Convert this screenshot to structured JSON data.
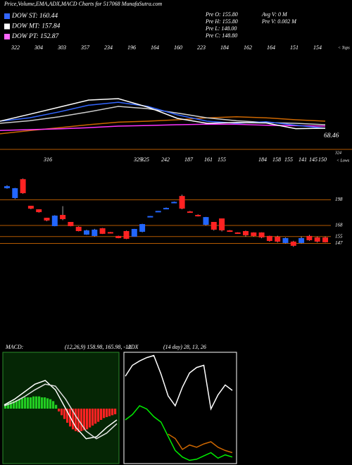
{
  "header": {
    "title": "Price,Volume,EMA,ADX,MACD Charts for 517068 MunafaSutra.com",
    "legend": [
      {
        "label": "DOW ST: 160.44",
        "color": "#3366ff"
      },
      {
        "label": "DOW MT: 157.84",
        "color": "#ffffff"
      },
      {
        "label": "DOW PT: 152.87",
        "color": "#ff66ff"
      }
    ],
    "info": [
      "Pre  O: 155.80",
      "Pre  H: 155.80",
      "Pre  L: 148.00",
      "Pre  C: 148.80",
      "Avg V: 0  M",
      "Pre  V: 0.002  M"
    ]
  },
  "chart_data": [
    {
      "type": "line",
      "ylim": [
        0,
        400
      ],
      "top_labels": [
        "322",
        "304",
        "303",
        "357",
        "234",
        "196",
        "164",
        "160",
        "223",
        "184",
        "162",
        "164",
        "151",
        "154"
      ],
      "tops_marker": "< Tops",
      "last_value": 68.46,
      "bottom_value": 324,
      "series": [
        {
          "color": "#cc6600",
          "values": [
            79,
            95,
            110,
            125,
            138,
            143,
            150,
            160,
            165,
            160,
            150,
            143
          ]
        },
        {
          "color": "#ff33ff",
          "values": [
            96,
            100,
            104,
            110,
            118,
            121,
            125,
            128,
            127,
            122,
            120,
            118
          ]
        },
        {
          "color": "#cccccc",
          "values": [
            132,
            145,
            165,
            190,
            218,
            206,
            184,
            160,
            145,
            136,
            132,
            125
          ]
        },
        {
          "color": "#3366ff",
          "values": [
            143,
            160,
            190,
            224,
            239,
            218,
            175,
            143,
            132,
            140,
            122,
            107
          ]
        },
        {
          "color": "#ffffff",
          "values": [
            143,
            178,
            214,
            250,
            257,
            214,
            157,
            132,
            136,
            134,
            105,
            107
          ]
        }
      ]
    },
    {
      "type": "candlestick",
      "ylim": [
        135,
        234
      ],
      "up_color": "#2266ff",
      "down_color": "#ff2222",
      "level_color": "#b35900",
      "low_labels": [
        "316",
        "329",
        "325",
        "242",
        "187",
        "161",
        "155",
        "184",
        "158",
        "155",
        "141",
        "145",
        "150"
      ],
      "lows_marker": "< Lows",
      "levels": [
        198,
        168,
        155,
        147
      ],
      "open": [
        212,
        200.5,
        221.8,
        190.6,
        186.5,
        176.6,
        167.6,
        179.9,
        171.7,
        166,
        157.7,
        156.1,
        164.3,
        159.8,
        155.3,
        161,
        155.3,
        161,
        178,
        184,
        187.3,
        194.7,
        202.1,
        184,
        179.9,
        169.2,
        171.7,
        175.8,
        161.8,
        159.4,
        161,
        159.4,
        159.4,
        155.3,
        154.4,
        147.9,
        148.7,
        147.9,
        155.3,
        153.6,
        153.6
      ],
      "close": [
        213.6,
        211.2,
        206.2,
        188.1,
        184,
        174.2,
        179.1,
        175.8,
        167.6,
        161.8,
        161.8,
        162.7,
        158.6,
        159,
        153.6,
        152.8,
        163.5,
        169.2,
        178.6,
        184.6,
        188.1,
        195.2,
        188.1,
        183.4,
        179.1,
        177.4,
        163.5,
        162.7,
        161.2,
        158.9,
        156.9,
        156.1,
        154.4,
        150.3,
        149.5,
        152.8,
        144.6,
        152.8,
        151.1,
        149.5,
        148.7
      ],
      "high": [
        215,
        212,
        223,
        191,
        187,
        177,
        180,
        190.6,
        172,
        167,
        163,
        164,
        165,
        160.5,
        156,
        162,
        164,
        170,
        179,
        185,
        189,
        196,
        204,
        185,
        181,
        178,
        172,
        176,
        162.5,
        160,
        162,
        160,
        160,
        156,
        156,
        154,
        150,
        155,
        157,
        155,
        155
      ],
      "low": [
        211,
        199,
        205,
        187,
        183,
        173,
        167,
        174.2,
        167,
        161,
        157,
        155,
        158,
        158.5,
        153,
        152,
        155,
        160,
        177.5,
        183.8,
        187,
        194,
        187,
        182.8,
        178.5,
        168,
        162,
        161,
        160.5,
        158.2,
        155,
        155,
        153,
        149,
        148,
        147,
        143,
        147,
        150,
        148,
        148
      ]
    },
    {
      "type": "macd",
      "label": "MACD:",
      "params": "(12,26,9) 158.98, 165.98, -12",
      "ylim": [
        -60,
        60
      ],
      "up_color": "#22cc22",
      "down_color": "#ff2222",
      "histogram": [
        5,
        6,
        7,
        8,
        9,
        10,
        11,
        12,
        12,
        12,
        13,
        13,
        13,
        12,
        12,
        11,
        10,
        8,
        4,
        -3,
        -7,
        -11,
        -15,
        -19,
        -22,
        -24,
        -25,
        -24,
        -23,
        -22,
        -20,
        -18,
        -16,
        -14,
        -12,
        -10,
        -9,
        -8,
        -7,
        -6
      ],
      "series": [
        {
          "color": "#ffffff",
          "values": [
            4,
            10,
            18,
            26,
            30,
            20,
            0,
            -20,
            -32,
            -30,
            -20,
            -12
          ]
        },
        {
          "color": "#dddddd",
          "values": [
            3,
            7,
            13,
            20,
            26,
            24,
            10,
            -8,
            -24,
            -32,
            -26,
            -16
          ]
        }
      ]
    },
    {
      "type": "line",
      "label": "ADX",
      "params": "(14 day) 28, 13, 26",
      "ylim": [
        0,
        100
      ],
      "series": [
        {
          "color": "#ffffff",
          "values": [
            80,
            90,
            94,
            97,
            99,
            82,
            62,
            53,
            70,
            83,
            88,
            90,
            50,
            63,
            72,
            67
          ]
        },
        {
          "color": "#00ee00",
          "values": [
            40,
            45,
            53,
            50,
            43,
            38,
            25,
            12,
            6,
            3,
            4,
            7,
            10,
            5,
            8,
            6
          ]
        },
        {
          "color": "#cc6600",
          "values": [
            null,
            null,
            null,
            null,
            null,
            null,
            27,
            23,
            13,
            17,
            15,
            18,
            20,
            15,
            12,
            10
          ]
        }
      ]
    }
  ]
}
